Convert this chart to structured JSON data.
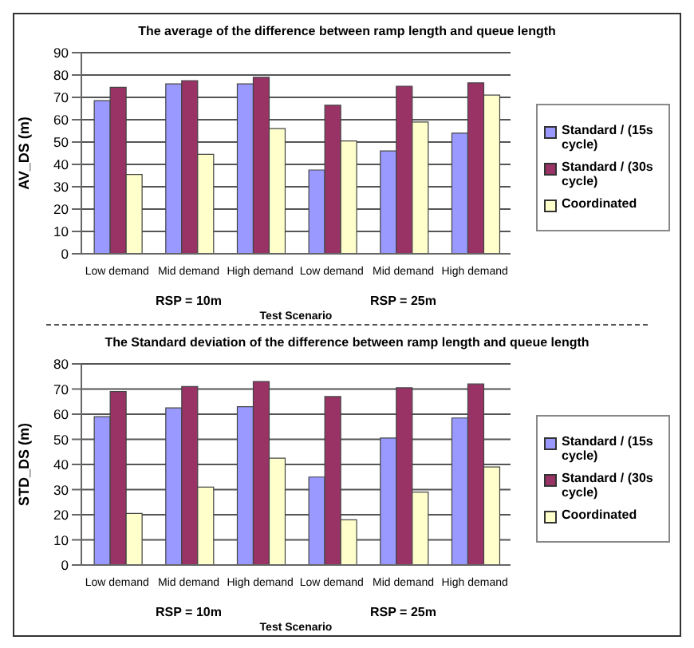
{
  "chart_data": [
    {
      "type": "bar",
      "title": "The average of the difference between ramp length and queue length",
      "xlabel": "Test Scenario",
      "ylabel": "AV_DS (m)",
      "categories": [
        "Low demand",
        "Mid demand",
        "High demand",
        "Low demand",
        "Mid demand",
        "High demand"
      ],
      "series": [
        {
          "name": "Standard / (15s cycle)",
          "color": "#9999ff",
          "values": [
            68.5,
            76,
            76,
            37.5,
            46,
            54
          ]
        },
        {
          "name": "Standard / (30s cycle)",
          "color": "#993366",
          "values": [
            74.5,
            77.5,
            79,
            66.5,
            75,
            76.5
          ]
        },
        {
          "name": "Coordinated",
          "color": "#ffffcc",
          "values": [
            35.5,
            44.5,
            56,
            50.5,
            59,
            71
          ]
        }
      ],
      "ylim": [
        0,
        90
      ],
      "yticks": [
        0,
        10,
        20,
        30,
        40,
        50,
        60,
        70,
        80,
        90
      ],
      "grid": "y",
      "legend": "right",
      "annotations": [
        "RSP = 10m",
        "RSP = 25m"
      ]
    },
    {
      "type": "bar",
      "title": "The Standard deviation of the difference between ramp length and queue length",
      "xlabel": "Test Scenario",
      "ylabel": "STD_DS (m)",
      "categories": [
        "Low demand",
        "Mid demand",
        "High demand",
        "Low demand",
        "Mid demand",
        "High demand"
      ],
      "series": [
        {
          "name": "Standard / (15s cycle)",
          "color": "#9999ff",
          "values": [
            59,
            62.5,
            63,
            35,
            50.5,
            58.5
          ]
        },
        {
          "name": "Standard / (30s cycle)",
          "color": "#993366",
          "values": [
            69,
            71,
            73,
            67,
            70.5,
            72
          ]
        },
        {
          "name": "Coordinated",
          "color": "#ffffcc",
          "values": [
            20.5,
            31,
            42.5,
            18,
            29,
            39
          ]
        }
      ],
      "ylim": [
        0,
        80
      ],
      "yticks": [
        0,
        10,
        20,
        30,
        40,
        50,
        60,
        70,
        80
      ],
      "grid": "y",
      "legend": "right",
      "annotations": [
        "RSP = 10m",
        "RSP = 25m"
      ]
    }
  ]
}
